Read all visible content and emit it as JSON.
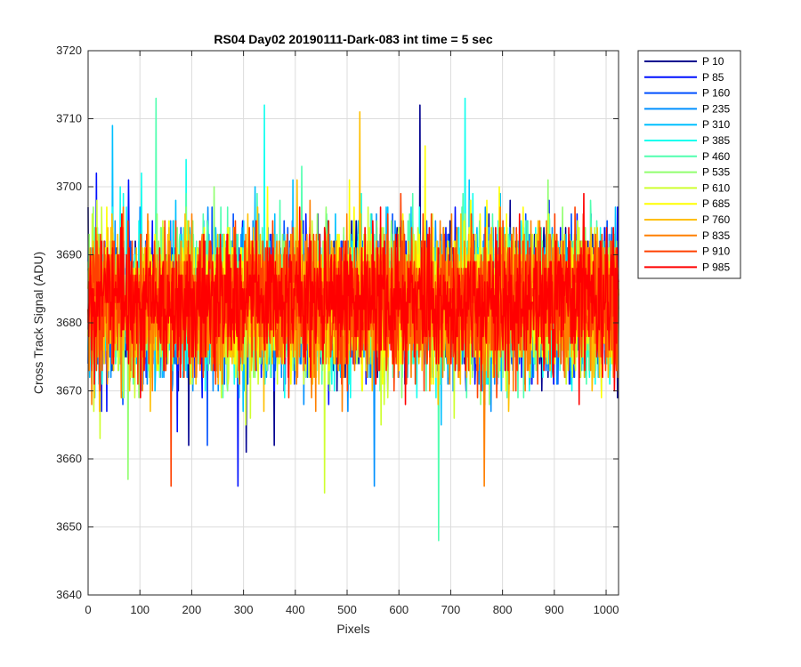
{
  "chart_data": {
    "type": "line",
    "title": "RS04 Day02 20190111-Dark-083 int time = 5 sec",
    "xlabel": "Pixels",
    "ylabel": "Cross Track Signal (ADU)",
    "xlim": [
      0,
      1024
    ],
    "ylim": [
      3640,
      3720
    ],
    "xticks": [
      0,
      100,
      200,
      300,
      400,
      500,
      600,
      700,
      800,
      900,
      1000
    ],
    "yticks": [
      3640,
      3650,
      3660,
      3670,
      3680,
      3690,
      3700,
      3710,
      3720
    ],
    "grid": true,
    "legend_position": "outside-right",
    "n_points": 1024,
    "series": [
      {
        "name": "P 10",
        "color": "#00008f",
        "mean": 3683,
        "spread": 9.5,
        "spikes": [
          [
            640,
            3712
          ],
          [
            305,
            3661
          ]
        ]
      },
      {
        "name": "P 85",
        "color": "#0010ff",
        "mean": 3683,
        "spread": 9.5,
        "spikes": [
          [
            16,
            3702
          ],
          [
            289,
            3656
          ]
        ]
      },
      {
        "name": "P 160",
        "color": "#0050ff",
        "mean": 3683,
        "spread": 9.5,
        "spikes": [
          [
            230,
            3662
          ]
        ]
      },
      {
        "name": "P 235",
        "color": "#0090ff",
        "mean": 3683,
        "spread": 9.5,
        "spikes": [
          [
            552,
            3656
          ]
        ]
      },
      {
        "name": "P 310",
        "color": "#00c0ff",
        "mean": 3683,
        "spread": 9.5,
        "spikes": [
          [
            47,
            3709
          ]
        ]
      },
      {
        "name": "P 385",
        "color": "#10ffef",
        "mean": 3683,
        "spread": 9.5,
        "spikes": [
          [
            340,
            3712
          ],
          [
            727,
            3713
          ]
        ]
      },
      {
        "name": "P 460",
        "color": "#50ffaf",
        "mean": 3683,
        "spread": 9.5,
        "spikes": [
          [
            131,
            3713
          ],
          [
            676,
            3648
          ]
        ]
      },
      {
        "name": "P 535",
        "color": "#90ff6f",
        "mean": 3683,
        "spread": 9.5,
        "spikes": [
          [
            77,
            3657
          ]
        ]
      },
      {
        "name": "P 610",
        "color": "#cfff30",
        "mean": 3683,
        "spread": 9.5,
        "spikes": [
          [
            456,
            3655
          ]
        ]
      },
      {
        "name": "P 685",
        "color": "#ffff00",
        "mean": 3683,
        "spread": 9.5,
        "spikes": [
          [
            650,
            3706
          ]
        ]
      },
      {
        "name": "P 760",
        "color": "#ffbf00",
        "mean": 3683,
        "spread": 9.5,
        "spikes": [
          [
            524,
            3711
          ]
        ]
      },
      {
        "name": "P 835",
        "color": "#ff8000",
        "mean": 3683,
        "spread": 9.5,
        "spikes": [
          [
            764,
            3656
          ]
        ]
      },
      {
        "name": "P 910",
        "color": "#ff4000",
        "mean": 3683,
        "spread": 9.5,
        "spikes": [
          [
            160,
            3656
          ]
        ]
      },
      {
        "name": "P 985",
        "color": "#ff0000",
        "mean": 3683,
        "spread": 8.5,
        "spikes": []
      }
    ]
  }
}
